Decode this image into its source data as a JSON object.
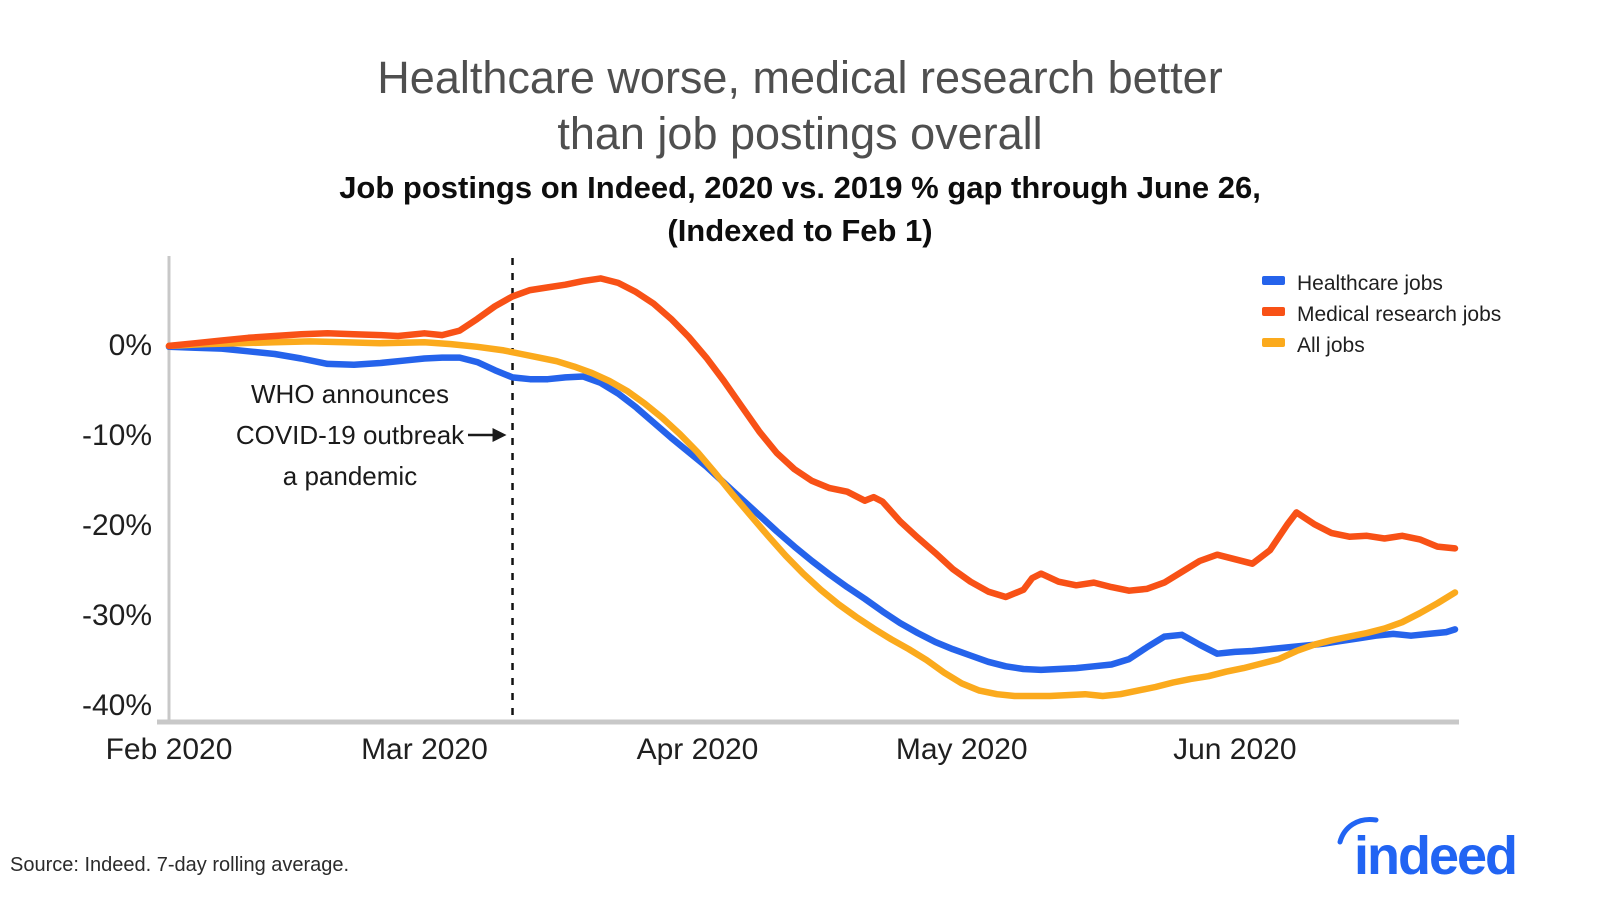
{
  "header": {
    "title_line1": "Healthcare worse, medical research better",
    "title_line2": "than job postings overall",
    "subtitle_line1": "Job postings on Indeed, 2020 vs. 2019 % gap through June 26,",
    "subtitle_line2": "(Indexed to Feb 1)"
  },
  "footer": {
    "source": "Source: Indeed. 7-day rolling average."
  },
  "logo": {
    "text": "indeed",
    "color": "#2164f3"
  },
  "chart_data": {
    "type": "line",
    "title": "Healthcare worse, medical research better than job postings overall",
    "subtitle": "Job postings on Indeed, 2020 vs. 2019 % gap through June 26, (Indexed to Feb 1)",
    "x_unit": "days since Feb 1, 2020",
    "y_unit": "% gap vs 2019",
    "xlim": [
      0,
      146
    ],
    "ylim": [
      -42,
      10
    ],
    "grid": false,
    "legend_position": "top-right",
    "axis_color": "#c8c8c8",
    "tick_text_color": "#1f1f1f",
    "x_ticks": [
      {
        "day": 0,
        "label": "Feb 2020"
      },
      {
        "day": 29,
        "label": "Mar 2020"
      },
      {
        "day": 60,
        "label": "Apr 2020"
      },
      {
        "day": 90,
        "label": "May 2020"
      },
      {
        "day": 121,
        "label": "Jun 2020"
      }
    ],
    "y_ticks": [
      {
        "value": 0,
        "label": "0%"
      },
      {
        "value": -10,
        "label": "-10%"
      },
      {
        "value": -20,
        "label": "-20%"
      },
      {
        "value": -30,
        "label": "-30%"
      },
      {
        "value": -40,
        "label": "-40%"
      }
    ],
    "annotation": {
      "lines": [
        "WHO announces",
        "COVID-19 outbreak",
        "a pandemic"
      ],
      "event_day": 39,
      "event_label": "WHO declares COVID-19 a pandemic (dashed line)"
    },
    "series": [
      {
        "name": "Healthcare jobs",
        "color": "#2563eb",
        "points": [
          [
            0,
            -0.2
          ],
          [
            3,
            -0.3
          ],
          [
            6,
            -0.4
          ],
          [
            9,
            -0.7
          ],
          [
            12,
            -1.0
          ],
          [
            15,
            -1.5
          ],
          [
            18,
            -2.1
          ],
          [
            21,
            -2.2
          ],
          [
            24,
            -2.0
          ],
          [
            27,
            -1.7
          ],
          [
            29,
            -1.5
          ],
          [
            31,
            -1.4
          ],
          [
            33,
            -1.4
          ],
          [
            35,
            -1.9
          ],
          [
            37,
            -2.8
          ],
          [
            39,
            -3.6
          ],
          [
            41,
            -3.8
          ],
          [
            43,
            -3.8
          ],
          [
            45,
            -3.6
          ],
          [
            47,
            -3.5
          ],
          [
            49,
            -4.2
          ],
          [
            51,
            -5.4
          ],
          [
            53,
            -6.9
          ],
          [
            55,
            -8.6
          ],
          [
            57,
            -10.3
          ],
          [
            59,
            -11.9
          ],
          [
            61,
            -13.5
          ],
          [
            63,
            -15.3
          ],
          [
            65,
            -17.1
          ],
          [
            67,
            -18.9
          ],
          [
            69,
            -20.7
          ],
          [
            71,
            -22.4
          ],
          [
            73,
            -24.0
          ],
          [
            75,
            -25.5
          ],
          [
            77,
            -26.9
          ],
          [
            79,
            -28.2
          ],
          [
            81,
            -29.6
          ],
          [
            83,
            -30.9
          ],
          [
            85,
            -32.0
          ],
          [
            87,
            -33.0
          ],
          [
            89,
            -33.8
          ],
          [
            91,
            -34.5
          ],
          [
            93,
            -35.2
          ],
          [
            95,
            -35.7
          ],
          [
            97,
            -36.0
          ],
          [
            99,
            -36.1
          ],
          [
            101,
            -36.0
          ],
          [
            103,
            -35.9
          ],
          [
            105,
            -35.7
          ],
          [
            107,
            -35.5
          ],
          [
            109,
            -34.9
          ],
          [
            111,
            -33.6
          ],
          [
            113,
            -32.4
          ],
          [
            115,
            -32.2
          ],
          [
            117,
            -33.3
          ],
          [
            119,
            -34.3
          ],
          [
            121,
            -34.1
          ],
          [
            123,
            -34.0
          ],
          [
            125,
            -33.8
          ],
          [
            127,
            -33.6
          ],
          [
            129,
            -33.4
          ],
          [
            131,
            -33.2
          ],
          [
            133,
            -32.9
          ],
          [
            135,
            -32.6
          ],
          [
            137,
            -32.3
          ],
          [
            139,
            -32.1
          ],
          [
            141,
            -32.3
          ],
          [
            143,
            -32.1
          ],
          [
            145,
            -31.9
          ],
          [
            146,
            -31.6
          ]
        ]
      },
      {
        "name": "Medical research jobs",
        "color": "#f85116",
        "points": [
          [
            0,
            -0.1
          ],
          [
            3,
            0.2
          ],
          [
            6,
            0.5
          ],
          [
            9,
            0.8
          ],
          [
            12,
            1.0
          ],
          [
            15,
            1.2
          ],
          [
            18,
            1.3
          ],
          [
            21,
            1.2
          ],
          [
            24,
            1.1
          ],
          [
            26,
            1.0
          ],
          [
            29,
            1.3
          ],
          [
            31,
            1.1
          ],
          [
            33,
            1.6
          ],
          [
            35,
            2.9
          ],
          [
            37,
            4.3
          ],
          [
            39,
            5.4
          ],
          [
            41,
            6.1
          ],
          [
            43,
            6.4
          ],
          [
            45,
            6.7
          ],
          [
            47,
            7.1
          ],
          [
            49,
            7.4
          ],
          [
            51,
            6.9
          ],
          [
            53,
            5.9
          ],
          [
            55,
            4.6
          ],
          [
            57,
            2.9
          ],
          [
            59,
            0.9
          ],
          [
            61,
            -1.4
          ],
          [
            63,
            -4.0
          ],
          [
            65,
            -6.8
          ],
          [
            67,
            -9.6
          ],
          [
            69,
            -12.0
          ],
          [
            71,
            -13.8
          ],
          [
            73,
            -15.1
          ],
          [
            75,
            -15.9
          ],
          [
            77,
            -16.3
          ],
          [
            79,
            -17.3
          ],
          [
            80,
            -16.9
          ],
          [
            81,
            -17.4
          ],
          [
            83,
            -19.6
          ],
          [
            85,
            -21.4
          ],
          [
            87,
            -23.1
          ],
          [
            89,
            -24.9
          ],
          [
            91,
            -26.3
          ],
          [
            93,
            -27.4
          ],
          [
            95,
            -28.0
          ],
          [
            97,
            -27.2
          ],
          [
            98,
            -25.9
          ],
          [
            99,
            -25.4
          ],
          [
            101,
            -26.3
          ],
          [
            103,
            -26.7
          ],
          [
            105,
            -26.4
          ],
          [
            107,
            -26.9
          ],
          [
            109,
            -27.3
          ],
          [
            111,
            -27.1
          ],
          [
            113,
            -26.4
          ],
          [
            115,
            -25.2
          ],
          [
            117,
            -24.0
          ],
          [
            119,
            -23.3
          ],
          [
            121,
            -23.8
          ],
          [
            123,
            -24.3
          ],
          [
            125,
            -22.8
          ],
          [
            127,
            -19.9
          ],
          [
            128,
            -18.6
          ],
          [
            130,
            -19.9
          ],
          [
            132,
            -20.9
          ],
          [
            134,
            -21.3
          ],
          [
            136,
            -21.2
          ],
          [
            138,
            -21.5
          ],
          [
            140,
            -21.2
          ],
          [
            142,
            -21.6
          ],
          [
            144,
            -22.4
          ],
          [
            146,
            -22.6
          ]
        ]
      },
      {
        "name": "All jobs",
        "color": "#fbaa1d",
        "points": [
          [
            0,
            -0.1
          ],
          [
            4,
            0.1
          ],
          [
            8,
            0.2
          ],
          [
            12,
            0.3
          ],
          [
            16,
            0.4
          ],
          [
            20,
            0.3
          ],
          [
            24,
            0.2
          ],
          [
            29,
            0.3
          ],
          [
            32,
            0.1
          ],
          [
            35,
            -0.2
          ],
          [
            38,
            -0.6
          ],
          [
            40,
            -1.0
          ],
          [
            42,
            -1.4
          ],
          [
            44,
            -1.8
          ],
          [
            46,
            -2.4
          ],
          [
            48,
            -3.1
          ],
          [
            50,
            -4.0
          ],
          [
            52,
            -5.1
          ],
          [
            54,
            -6.5
          ],
          [
            56,
            -8.1
          ],
          [
            58,
            -9.9
          ],
          [
            60,
            -11.9
          ],
          [
            62,
            -14.2
          ],
          [
            64,
            -16.6
          ],
          [
            66,
            -18.9
          ],
          [
            68,
            -21.2
          ],
          [
            70,
            -23.4
          ],
          [
            72,
            -25.4
          ],
          [
            74,
            -27.2
          ],
          [
            76,
            -28.8
          ],
          [
            78,
            -30.2
          ],
          [
            80,
            -31.5
          ],
          [
            82,
            -32.7
          ],
          [
            84,
            -33.8
          ],
          [
            86,
            -35.0
          ],
          [
            88,
            -36.4
          ],
          [
            90,
            -37.6
          ],
          [
            92,
            -38.4
          ],
          [
            94,
            -38.8
          ],
          [
            96,
            -39.0
          ],
          [
            98,
            -39.0
          ],
          [
            100,
            -39.0
          ],
          [
            102,
            -38.9
          ],
          [
            104,
            -38.8
          ],
          [
            106,
            -39.0
          ],
          [
            108,
            -38.8
          ],
          [
            110,
            -38.4
          ],
          [
            112,
            -38.0
          ],
          [
            114,
            -37.5
          ],
          [
            116,
            -37.1
          ],
          [
            118,
            -36.8
          ],
          [
            120,
            -36.3
          ],
          [
            122,
            -35.9
          ],
          [
            124,
            -35.4
          ],
          [
            126,
            -34.9
          ],
          [
            128,
            -34.0
          ],
          [
            130,
            -33.3
          ],
          [
            132,
            -32.8
          ],
          [
            134,
            -32.4
          ],
          [
            136,
            -32.0
          ],
          [
            138,
            -31.5
          ],
          [
            140,
            -30.8
          ],
          [
            142,
            -29.8
          ],
          [
            144,
            -28.7
          ],
          [
            146,
            -27.5
          ]
        ]
      }
    ]
  }
}
